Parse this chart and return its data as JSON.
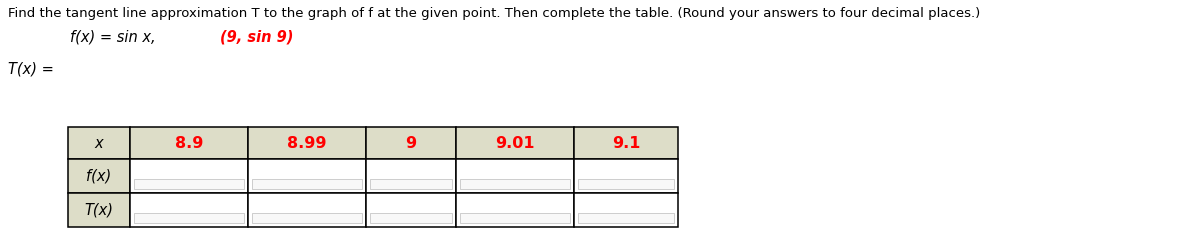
{
  "title_text": "Find the tangent line approximation T to the graph of f at the given point. Then complete the table. (Round your answers to four decimal places.)",
  "func_text": "f(x) = sin x,",
  "point_text": "(9, sin 9)",
  "tx_label": "T(x) =",
  "col_headers": [
    "x",
    "8.9",
    "8.99",
    "9",
    "9.01",
    "9.1"
  ],
  "row_labels": [
    "f(x)",
    "T(x)"
  ],
  "header_color": "#FF0000",
  "header_bg": "#DDDDC8",
  "row_label_bg": "#DDDDC8",
  "table_bg": "#FFFFFF",
  "border_color": "#000000",
  "text_color": "#000000",
  "title_fontsize": 9.5,
  "table_fontsize": 10.5,
  "func_fontsize": 10.5
}
